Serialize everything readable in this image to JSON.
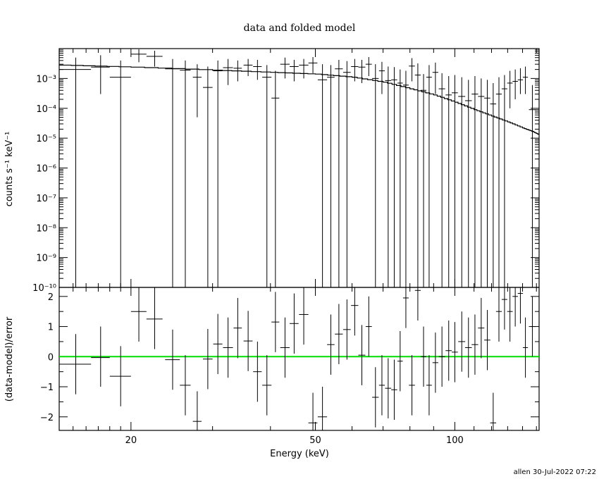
{
  "chart_data": [
    {
      "type": "scatter",
      "title": "data and folded model",
      "ylabel": "counts s⁻¹ keV⁻¹",
      "yscale": "log",
      "xscale": "log",
      "xlim": [
        14,
        152
      ],
      "ylim": [
        1e-10,
        0.01
      ],
      "yticks": [
        {
          "v": 1e-10,
          "label": "10⁻¹⁰"
        },
        {
          "v": 1e-09,
          "label": "10⁻⁹"
        },
        {
          "v": 1e-08,
          "label": "10⁻⁸"
        },
        {
          "v": 1e-07,
          "label": "10⁻⁷"
        },
        {
          "v": 1e-06,
          "label": "10⁻⁶"
        },
        {
          "v": 1e-05,
          "label": "10⁻⁵"
        },
        {
          "v": 0.0001,
          "label": "10⁻⁴"
        },
        {
          "v": 0.001,
          "label": "10⁻³"
        }
      ],
      "model": [
        [
          14.0,
          0.0028
        ],
        [
          20.0,
          0.0024
        ],
        [
          30.0,
          0.0019
        ],
        [
          40.0,
          0.0016
        ],
        [
          50.0,
          0.0014
        ],
        [
          60.0,
          0.0011
        ],
        [
          70.0,
          0.00075
        ],
        [
          80.0,
          0.00045
        ],
        [
          90.0,
          0.00028
        ],
        [
          100.0,
          0.00016
        ],
        [
          110.0,
          9e-05
        ],
        [
          120.0,
          5.5e-05
        ],
        [
          130.0,
          3.5e-05
        ],
        [
          140.0,
          2.2e-05
        ],
        [
          148.0,
          1.6e-05
        ],
        [
          152.0,
          1.3e-05
        ]
      ],
      "data": [
        {
          "x": 15.2,
          "xerr": 1.2,
          "y": 0.002,
          "ylo": 1e-10,
          "yhi": 0.005
        },
        {
          "x": 17.2,
          "xerr": 0.8,
          "y": 0.0024,
          "ylo": 0.0003,
          "yhi": 0.006
        },
        {
          "x": 19.0,
          "xerr": 1.0,
          "y": 0.0011,
          "ylo": 1e-10,
          "yhi": 0.004
        },
        {
          "x": 20.8,
          "xerr": 0.8,
          "y": 0.0065,
          "ylo": 0.0035,
          "yhi": 0.0095
        },
        {
          "x": 22.5,
          "xerr": 0.9,
          "y": 0.0055,
          "ylo": 0.0025,
          "yhi": 0.0085
        },
        {
          "x": 24.6,
          "xerr": 0.9,
          "y": 0.0021,
          "ylo": 1e-10,
          "yhi": 0.0045
        },
        {
          "x": 26.2,
          "xerr": 0.7,
          "y": 0.0019,
          "ylo": 1e-10,
          "yhi": 0.004
        },
        {
          "x": 27.8,
          "xerr": 0.6,
          "y": 0.0011,
          "ylo": 5e-05,
          "yhi": 0.003
        },
        {
          "x": 29.3,
          "xerr": 0.7,
          "y": 0.0005,
          "ylo": 1e-10,
          "yhi": 0.0025
        },
        {
          "x": 30.8,
          "xerr": 0.7,
          "y": 0.0018,
          "ylo": 1e-10,
          "yhi": 0.004
        },
        {
          "x": 32.4,
          "xerr": 0.8,
          "y": 0.0023,
          "ylo": 0.0006,
          "yhi": 0.0045
        },
        {
          "x": 34.0,
          "xerr": 0.7,
          "y": 0.0022,
          "ylo": 0.0008,
          "yhi": 0.004
        },
        {
          "x": 35.8,
          "xerr": 0.8,
          "y": 0.0028,
          "ylo": 0.0012,
          "yhi": 0.0045
        },
        {
          "x": 37.5,
          "xerr": 0.8,
          "y": 0.0025,
          "ylo": 0.0009,
          "yhi": 0.0042
        },
        {
          "x": 39.3,
          "xerr": 0.9,
          "y": 0.0011,
          "ylo": 1e-10,
          "yhi": 0.0028
        },
        {
          "x": 41.0,
          "xerr": 0.8,
          "y": 0.00022,
          "ylo": 1e-10,
          "yhi": 0.0018
        },
        {
          "x": 43.0,
          "xerr": 1.0,
          "y": 0.003,
          "ylo": 0.001,
          "yhi": 0.005
        },
        {
          "x": 45.0,
          "xerr": 1.0,
          "y": 0.0025,
          "ylo": 0.0008,
          "yhi": 0.0042
        },
        {
          "x": 47.2,
          "xerr": 1.1,
          "y": 0.0028,
          "ylo": 0.001,
          "yhi": 0.0045
        },
        {
          "x": 49.4,
          "xerr": 1.1,
          "y": 0.0033,
          "ylo": 0.0015,
          "yhi": 0.0052
        },
        {
          "x": 51.8,
          "xerr": 1.2,
          "y": 0.0009,
          "ylo": 1e-10,
          "yhi": 0.003
        },
        {
          "x": 54.0,
          "xerr": 1.0,
          "y": 0.0011,
          "ylo": 1e-10,
          "yhi": 0.0028
        },
        {
          "x": 56.2,
          "xerr": 1.1,
          "y": 0.0021,
          "ylo": 1e-10,
          "yhi": 0.0042
        },
        {
          "x": 58.5,
          "xerr": 1.1,
          "y": 0.0016,
          "ylo": 1e-10,
          "yhi": 0.0038
        },
        {
          "x": 60.8,
          "xerr": 1.1,
          "y": 0.0025,
          "ylo": 0.0008,
          "yhi": 0.0045
        },
        {
          "x": 63.0,
          "xerr": 1.1,
          "y": 0.0024,
          "ylo": 0.0007,
          "yhi": 0.0042
        },
        {
          "x": 65.2,
          "xerr": 1.0,
          "y": 0.003,
          "ylo": 0.0012,
          "yhi": 0.0052
        },
        {
          "x": 67.4,
          "xerr": 1.1,
          "y": 0.001,
          "ylo": 1e-10,
          "yhi": 0.003
        },
        {
          "x": 69.6,
          "xerr": 1.0,
          "y": 0.0018,
          "ylo": 0.0003,
          "yhi": 0.0036
        },
        {
          "x": 71.8,
          "xerr": 1.1,
          "y": 0.00085,
          "ylo": 1e-10,
          "yhi": 0.0025
        },
        {
          "x": 74.0,
          "xerr": 1.1,
          "y": 0.0009,
          "ylo": 1e-10,
          "yhi": 0.0024
        },
        {
          "x": 76.2,
          "xerr": 1.0,
          "y": 0.0007,
          "ylo": 1e-10,
          "yhi": 0.002
        },
        {
          "x": 78.4,
          "xerr": 1.1,
          "y": 0.0006,
          "ylo": 1e-10,
          "yhi": 0.0018
        },
        {
          "x": 80.8,
          "xerr": 1.2,
          "y": 0.0026,
          "ylo": 0.0008,
          "yhi": 0.0048
        },
        {
          "x": 83.2,
          "xerr": 1.2,
          "y": 0.0013,
          "ylo": 1e-10,
          "yhi": 0.0032
        },
        {
          "x": 85.6,
          "xerr": 1.2,
          "y": 0.0004,
          "ylo": 1e-10,
          "yhi": 0.0014
        },
        {
          "x": 88.0,
          "xerr": 1.2,
          "y": 0.0011,
          "ylo": 1e-10,
          "yhi": 0.0028
        },
        {
          "x": 90.8,
          "xerr": 1.3,
          "y": 0.0016,
          "ylo": 0.0003,
          "yhi": 0.0034
        },
        {
          "x": 93.8,
          "xerr": 1.5,
          "y": 0.00045,
          "ylo": 1e-10,
          "yhi": 0.0015
        },
        {
          "x": 97.0,
          "xerr": 1.5,
          "y": 0.00028,
          "ylo": 1e-10,
          "yhi": 0.0012
        },
        {
          "x": 100.0,
          "xerr": 1.5,
          "y": 0.00033,
          "ylo": 1e-10,
          "yhi": 0.0013
        },
        {
          "x": 103.5,
          "xerr": 1.8,
          "y": 0.00025,
          "ylo": 1e-10,
          "yhi": 0.0011
        },
        {
          "x": 107.0,
          "xerr": 1.8,
          "y": 0.00018,
          "ylo": 1e-10,
          "yhi": 0.0009
        },
        {
          "x": 110.5,
          "xerr": 1.8,
          "y": 0.0003,
          "ylo": 1e-10,
          "yhi": 0.0012
        },
        {
          "x": 114.0,
          "xerr": 1.8,
          "y": 0.00025,
          "ylo": 1e-10,
          "yhi": 0.001
        },
        {
          "x": 117.5,
          "xerr": 1.8,
          "y": 0.00022,
          "ylo": 1e-10,
          "yhi": 0.0009
        },
        {
          "x": 121.0,
          "xerr": 1.8,
          "y": 0.00014,
          "ylo": 1e-10,
          "yhi": 0.0007
        },
        {
          "x": 124.5,
          "xerr": 1.8,
          "y": 0.0003,
          "ylo": 1e-10,
          "yhi": 0.0011
        },
        {
          "x": 128.0,
          "xerr": 1.8,
          "y": 0.00045,
          "ylo": 1e-10,
          "yhi": 0.0013
        },
        {
          "x": 131.5,
          "xerr": 1.8,
          "y": 0.0007,
          "ylo": 0.0001,
          "yhi": 0.0018
        },
        {
          "x": 135.0,
          "xerr": 1.8,
          "y": 0.0008,
          "ylo": 0.0002,
          "yhi": 0.002
        },
        {
          "x": 138.5,
          "xerr": 1.8,
          "y": 0.0009,
          "ylo": 0.0003,
          "yhi": 0.0022
        },
        {
          "x": 142.0,
          "xerr": 1.8,
          "y": 0.0011,
          "ylo": 0.0003,
          "yhi": 0.0025
        },
        {
          "x": 147.0,
          "xerr": 2.5,
          "y": 9e-05,
          "ylo": 1e-10,
          "yhi": 0.0006
        }
      ]
    },
    {
      "type": "scatter",
      "xlabel": "Energy (keV)",
      "ylabel": "(data-model)/error",
      "xscale": "log",
      "xlim": [
        14,
        152
      ],
      "ylim": [
        -2.45,
        2.3
      ],
      "xticks": [
        {
          "v": 20,
          "label": "20"
        },
        {
          "v": 50,
          "label": "50"
        },
        {
          "v": 100,
          "label": "100"
        }
      ],
      "yticks": [
        {
          "v": -2,
          "label": "−2"
        },
        {
          "v": -1,
          "label": "−1"
        },
        {
          "v": 0,
          "label": "0"
        },
        {
          "v": 1,
          "label": "1"
        },
        {
          "v": 2,
          "label": "2"
        }
      ],
      "zero_line": {
        "value": 0,
        "color": "#00dd00"
      },
      "residuals": [
        {
          "x": 15.2,
          "xerr": 1.2,
          "y": -0.25,
          "ylo": -1.25,
          "yhi": 0.75
        },
        {
          "x": 17.2,
          "xerr": 0.8,
          "y": -0.03,
          "ylo": -1.0,
          "yhi": 1.0
        },
        {
          "x": 19.0,
          "xerr": 1.0,
          "y": -0.65,
          "ylo": -1.65,
          "yhi": 0.35
        },
        {
          "x": 20.8,
          "xerr": 0.8,
          "y": 1.5,
          "ylo": 0.5,
          "yhi": 2.3
        },
        {
          "x": 22.5,
          "xerr": 0.9,
          "y": 1.25,
          "ylo": 0.25,
          "yhi": 2.3
        },
        {
          "x": 24.6,
          "xerr": 0.9,
          "y": -0.1,
          "ylo": -1.1,
          "yhi": 0.9
        },
        {
          "x": 26.2,
          "xerr": 0.7,
          "y": -0.95,
          "ylo": -1.95,
          "yhi": 0.05
        },
        {
          "x": 27.8,
          "xerr": 0.6,
          "y": -2.15,
          "ylo": -2.45,
          "yhi": -1.15
        },
        {
          "x": 29.3,
          "xerr": 0.7,
          "y": -0.08,
          "ylo": -1.08,
          "yhi": 0.92
        },
        {
          "x": 30.8,
          "xerr": 0.7,
          "y": 0.42,
          "ylo": -0.58,
          "yhi": 1.42
        },
        {
          "x": 32.4,
          "xerr": 0.8,
          "y": 0.3,
          "ylo": -0.7,
          "yhi": 1.3
        },
        {
          "x": 34.0,
          "xerr": 0.7,
          "y": 0.95,
          "ylo": -0.05,
          "yhi": 1.95
        },
        {
          "x": 35.8,
          "xerr": 0.8,
          "y": 0.52,
          "ylo": -0.48,
          "yhi": 1.52
        },
        {
          "x": 37.5,
          "xerr": 0.8,
          "y": -0.5,
          "ylo": -1.5,
          "yhi": 0.5
        },
        {
          "x": 39.3,
          "xerr": 0.9,
          "y": -0.95,
          "ylo": -1.95,
          "yhi": 0.05
        },
        {
          "x": 41.0,
          "xerr": 0.8,
          "y": 1.15,
          "ylo": 0.15,
          "yhi": 2.15
        },
        {
          "x": 43.0,
          "xerr": 1.0,
          "y": 0.3,
          "ylo": -0.7,
          "yhi": 1.3
        },
        {
          "x": 45.0,
          "xerr": 1.0,
          "y": 1.1,
          "ylo": 0.1,
          "yhi": 2.1
        },
        {
          "x": 47.2,
          "xerr": 1.1,
          "y": 1.4,
          "ylo": 0.4,
          "yhi": 2.3
        },
        {
          "x": 49.4,
          "xerr": 1.1,
          "y": -2.2,
          "ylo": -2.45,
          "yhi": -1.2
        },
        {
          "x": 51.8,
          "xerr": 1.2,
          "y": -2.0,
          "ylo": -2.45,
          "yhi": -1.0
        },
        {
          "x": 54.0,
          "xerr": 1.0,
          "y": 0.4,
          "ylo": -0.6,
          "yhi": 1.4
        },
        {
          "x": 56.2,
          "xerr": 1.1,
          "y": 0.75,
          "ylo": -0.25,
          "yhi": 1.75
        },
        {
          "x": 58.5,
          "xerr": 1.1,
          "y": 0.9,
          "ylo": -0.1,
          "yhi": 1.9
        },
        {
          "x": 60.8,
          "xerr": 1.1,
          "y": 1.7,
          "ylo": 0.7,
          "yhi": 2.3
        },
        {
          "x": 63.0,
          "xerr": 1.1,
          "y": 0.05,
          "ylo": -0.95,
          "yhi": 1.05
        },
        {
          "x": 65.2,
          "xerr": 1.0,
          "y": 1.0,
          "ylo": 0.0,
          "yhi": 2.0
        },
        {
          "x": 67.4,
          "xerr": 1.1,
          "y": -1.35,
          "ylo": -2.35,
          "yhi": -0.35
        },
        {
          "x": 69.6,
          "xerr": 1.0,
          "y": -0.95,
          "ylo": -1.95,
          "yhi": 0.05
        },
        {
          "x": 71.8,
          "xerr": 1.1,
          "y": -1.05,
          "ylo": -2.05,
          "yhi": -0.05
        },
        {
          "x": 74.0,
          "xerr": 1.1,
          "y": -1.1,
          "ylo": -2.1,
          "yhi": -0.1
        },
        {
          "x": 76.2,
          "xerr": 1.0,
          "y": -0.15,
          "ylo": -1.15,
          "yhi": 0.85
        },
        {
          "x": 78.4,
          "xerr": 1.1,
          "y": 1.95,
          "ylo": 0.95,
          "yhi": 2.3
        },
        {
          "x": 80.8,
          "xerr": 1.2,
          "y": -0.95,
          "ylo": -1.95,
          "yhi": 0.05
        },
        {
          "x": 83.2,
          "xerr": 1.2,
          "y": 2.2,
          "ylo": 1.2,
          "yhi": 2.3
        },
        {
          "x": 85.6,
          "xerr": 1.2,
          "y": 0.0,
          "ylo": -1.0,
          "yhi": 1.0
        },
        {
          "x": 88.0,
          "xerr": 1.2,
          "y": -0.95,
          "ylo": -1.95,
          "yhi": 0.05
        },
        {
          "x": 90.8,
          "xerr": 1.3,
          "y": -0.2,
          "ylo": -1.2,
          "yhi": 0.8
        },
        {
          "x": 93.8,
          "xerr": 1.5,
          "y": 0.0,
          "ylo": -1.0,
          "yhi": 1.0
        },
        {
          "x": 97.0,
          "xerr": 1.5,
          "y": 0.2,
          "ylo": -0.8,
          "yhi": 1.2
        },
        {
          "x": 100.0,
          "xerr": 1.5,
          "y": 0.15,
          "ylo": -0.85,
          "yhi": 1.15
        },
        {
          "x": 103.5,
          "xerr": 1.8,
          "y": 0.5,
          "ylo": -0.5,
          "yhi": 1.5
        },
        {
          "x": 107.0,
          "xerr": 1.8,
          "y": 0.3,
          "ylo": -0.7,
          "yhi": 1.3
        },
        {
          "x": 110.5,
          "xerr": 1.8,
          "y": 0.4,
          "ylo": -0.6,
          "yhi": 1.4
        },
        {
          "x": 114.0,
          "xerr": 1.8,
          "y": 0.95,
          "ylo": -0.05,
          "yhi": 1.95
        },
        {
          "x": 117.5,
          "xerr": 1.8,
          "y": 0.55,
          "ylo": -0.45,
          "yhi": 1.55
        },
        {
          "x": 121.0,
          "xerr": 1.8,
          "y": -2.2,
          "ylo": -2.45,
          "yhi": -1.2
        },
        {
          "x": 124.5,
          "xerr": 1.8,
          "y": 1.5,
          "ylo": 0.5,
          "yhi": 2.3
        },
        {
          "x": 128.0,
          "xerr": 1.8,
          "y": 1.9,
          "ylo": 0.9,
          "yhi": 2.3
        },
        {
          "x": 131.5,
          "xerr": 1.8,
          "y": 1.5,
          "ylo": 0.5,
          "yhi": 2.3
        },
        {
          "x": 135.0,
          "xerr": 1.8,
          "y": 2.0,
          "ylo": 1.0,
          "yhi": 2.3
        },
        {
          "x": 138.5,
          "xerr": 1.8,
          "y": 2.1,
          "ylo": 1.1,
          "yhi": 2.3
        },
        {
          "x": 142.0,
          "xerr": 1.8,
          "y": 0.3,
          "ylo": -0.7,
          "yhi": 1.3
        },
        {
          "x": 147.0,
          "xerr": 2.5,
          "y": 1.0,
          "ylo": 0.0,
          "yhi": 2.0
        }
      ]
    }
  ],
  "footer": {
    "text": "allen 30-Jul-2022 07:22"
  }
}
